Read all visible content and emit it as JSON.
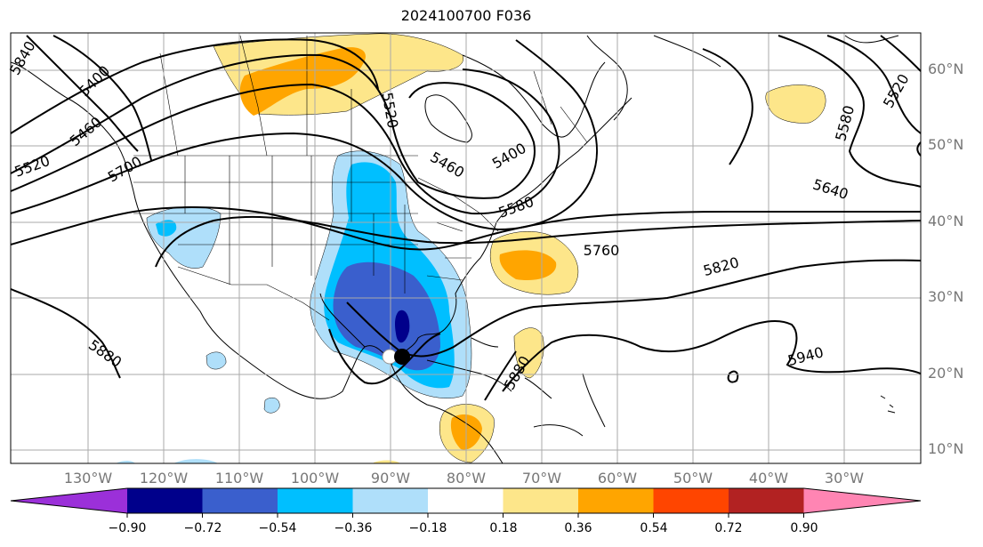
{
  "title": "2024100700 F036",
  "lat_labels": [
    "60°N",
    "50°N",
    "40°N",
    "30°N",
    "20°N",
    "10°N"
  ],
  "lon_labels": [
    "130°W",
    "120°W",
    "110°W",
    "100°W",
    "90°W",
    "80°W",
    "70°W",
    "60°W",
    "50°W",
    "40°W",
    "30°W"
  ],
  "contour_labels": [
    "5840",
    "5400",
    "5460",
    "5520",
    "5700",
    "5520",
    "5460",
    "5400",
    "5580",
    "5760",
    "5820",
    "5640",
    "5580",
    "5520",
    "5880",
    "5940",
    "5880"
  ],
  "colorbar": {
    "ticks": [
      "−0.90",
      "−0.72",
      "−0.54",
      "−0.36",
      "−0.18",
      "0.18",
      "0.36",
      "0.54",
      "0.72",
      "0.90"
    ],
    "colors": [
      "#9b30d9",
      "#00008b",
      "#3a5fcd",
      "#00bfff",
      "#afdffa",
      "#ffffff",
      "#fde68a",
      "#ffa500",
      "#ff4500",
      "#b22222",
      "#ff85b3"
    ]
  }
}
